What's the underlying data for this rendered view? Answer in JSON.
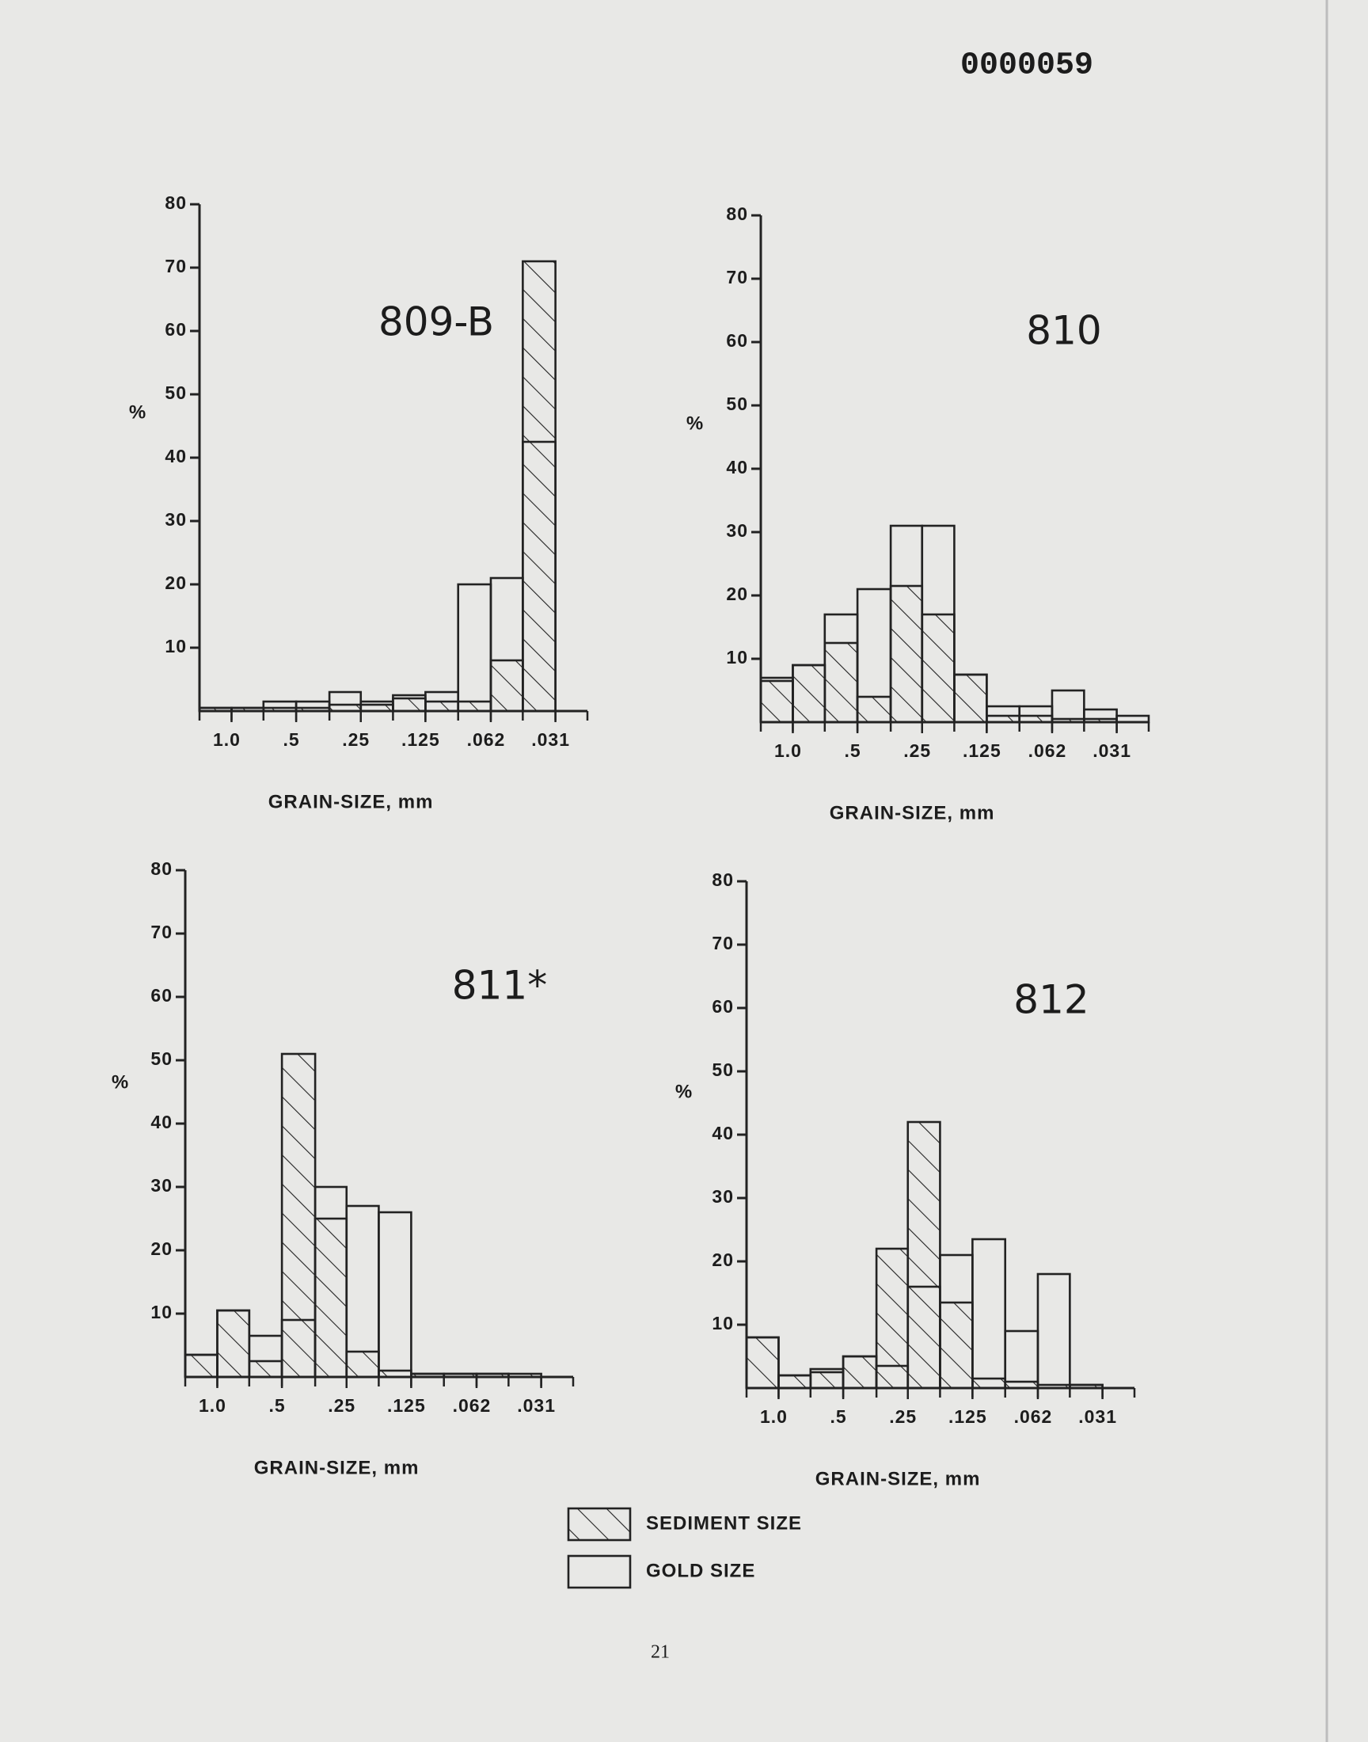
{
  "document_number": "0000059",
  "page_number": "21",
  "chart_data": [
    {
      "type": "histogram",
      "title": "809-B",
      "xlabel": "GRAIN-SIZE, mm",
      "ylabel": "%",
      "xscale": "log",
      "bins": [
        1.41,
        1.0,
        0.71,
        0.5,
        0.35,
        0.25,
        0.177,
        0.125,
        0.088,
        0.062,
        0.044,
        0.031,
        0.022
      ],
      "xlim": [
        1.41,
        0.022
      ],
      "xticks": [
        {
          "value": 1.0,
          "label": "1.0"
        },
        {
          "value": 0.5,
          "label": ".5"
        },
        {
          "value": 0.25,
          "label": ".25"
        },
        {
          "value": 0.125,
          "label": ".125"
        },
        {
          "value": 0.062,
          "label": ".062"
        },
        {
          "value": 0.031,
          "label": ".031"
        }
      ],
      "ylim": [
        0,
        80
      ],
      "yticks": [
        10,
        20,
        30,
        40,
        50,
        60,
        70,
        80
      ],
      "series": [
        {
          "name": "SEDIMENT SIZE",
          "color": "#222222",
          "fill": "hatch",
          "values": [
            0.5,
            0.5,
            0.5,
            0.5,
            1,
            1,
            2,
            1.5,
            1.5,
            8,
            71,
            0
          ]
        },
        {
          "name": "GOLD SIZE",
          "color": "#222222",
          "fill": "none",
          "values": [
            0.5,
            0.5,
            1.5,
            1.5,
            3,
            1.5,
            2.5,
            3,
            20,
            21,
            42.5,
            0
          ]
        }
      ]
    },
    {
      "type": "histogram",
      "title": "810",
      "xlabel": "GRAIN-SIZE, mm",
      "ylabel": "%",
      "xscale": "log",
      "bins": [
        1.41,
        1.0,
        0.71,
        0.5,
        0.35,
        0.25,
        0.177,
        0.125,
        0.088,
        0.062,
        0.044,
        0.031,
        0.022
      ],
      "xlim": [
        1.41,
        0.022
      ],
      "xticks": [
        {
          "value": 1.0,
          "label": "1.0"
        },
        {
          "value": 0.5,
          "label": ".5"
        },
        {
          "value": 0.25,
          "label": ".25"
        },
        {
          "value": 0.125,
          "label": ".125"
        },
        {
          "value": 0.062,
          "label": ".062"
        },
        {
          "value": 0.031,
          "label": ".031"
        }
      ],
      "ylim": [
        0,
        80
      ],
      "yticks": [
        10,
        20,
        30,
        40,
        50,
        60,
        70,
        80
      ],
      "series": [
        {
          "name": "SEDIMENT SIZE",
          "color": "#222222",
          "fill": "hatch",
          "values": [
            6.5,
            9,
            12.5,
            4,
            21.5,
            17,
            7.5,
            1,
            1,
            0.5,
            0.5,
            0
          ]
        },
        {
          "name": "GOLD SIZE",
          "color": "#222222",
          "fill": "none",
          "values": [
            7,
            9,
            17,
            21,
            31,
            31,
            7.5,
            2.5,
            2.5,
            5,
            2,
            1
          ]
        }
      ]
    },
    {
      "type": "histogram",
      "title": "811*",
      "xlabel": "GRAIN-SIZE, mm",
      "ylabel": "%",
      "xscale": "log",
      "bins": [
        1.41,
        1.0,
        0.71,
        0.5,
        0.35,
        0.25,
        0.177,
        0.125,
        0.088,
        0.062,
        0.044,
        0.031,
        0.022
      ],
      "xlim": [
        1.41,
        0.022
      ],
      "xticks": [
        {
          "value": 1.0,
          "label": "1.0"
        },
        {
          "value": 0.5,
          "label": ".5"
        },
        {
          "value": 0.25,
          "label": ".25"
        },
        {
          "value": 0.125,
          "label": ".125"
        },
        {
          "value": 0.062,
          "label": ".062"
        },
        {
          "value": 0.031,
          "label": ".031"
        }
      ],
      "ylim": [
        0,
        80
      ],
      "yticks": [
        10,
        20,
        30,
        40,
        50,
        60,
        70,
        80
      ],
      "series": [
        {
          "name": "SEDIMENT SIZE",
          "color": "#222222",
          "fill": "hatch",
          "values": [
            3.5,
            10.5,
            2.5,
            51,
            25,
            4,
            1,
            0.5,
            0.5,
            0.5,
            0.5,
            0
          ]
        },
        {
          "name": "GOLD SIZE",
          "color": "#222222",
          "fill": "none",
          "values": [
            3.5,
            10.5,
            6.5,
            9,
            30,
            27,
            26,
            0.5,
            0.5,
            0.5,
            0,
            0
          ]
        }
      ]
    },
    {
      "type": "histogram",
      "title": "812",
      "xlabel": "GRAIN-SIZE, mm",
      "ylabel": "%",
      "xscale": "log",
      "bins": [
        1.41,
        1.0,
        0.71,
        0.5,
        0.35,
        0.25,
        0.177,
        0.125,
        0.088,
        0.062,
        0.044,
        0.031,
        0.022
      ],
      "xlim": [
        1.41,
        0.022
      ],
      "xticks": [
        {
          "value": 1.0,
          "label": "1.0"
        },
        {
          "value": 0.5,
          "label": ".5"
        },
        {
          "value": 0.25,
          "label": ".25"
        },
        {
          "value": 0.125,
          "label": ".125"
        },
        {
          "value": 0.062,
          "label": ".062"
        },
        {
          "value": 0.031,
          "label": ".031"
        }
      ],
      "ylim": [
        0,
        80
      ],
      "yticks": [
        10,
        20,
        30,
        40,
        50,
        60,
        70,
        80
      ],
      "series": [
        {
          "name": "SEDIMENT SIZE",
          "color": "#222222",
          "fill": "hatch",
          "values": [
            8,
            2,
            2.5,
            5,
            22,
            42,
            13.5,
            1.5,
            1,
            0.5,
            0.5,
            0
          ]
        },
        {
          "name": "GOLD SIZE",
          "color": "#222222",
          "fill": "none",
          "values": [
            8,
            2,
            3,
            5,
            3.5,
            16,
            21,
            23.5,
            9,
            18,
            0.5,
            0
          ]
        }
      ]
    }
  ]
}
